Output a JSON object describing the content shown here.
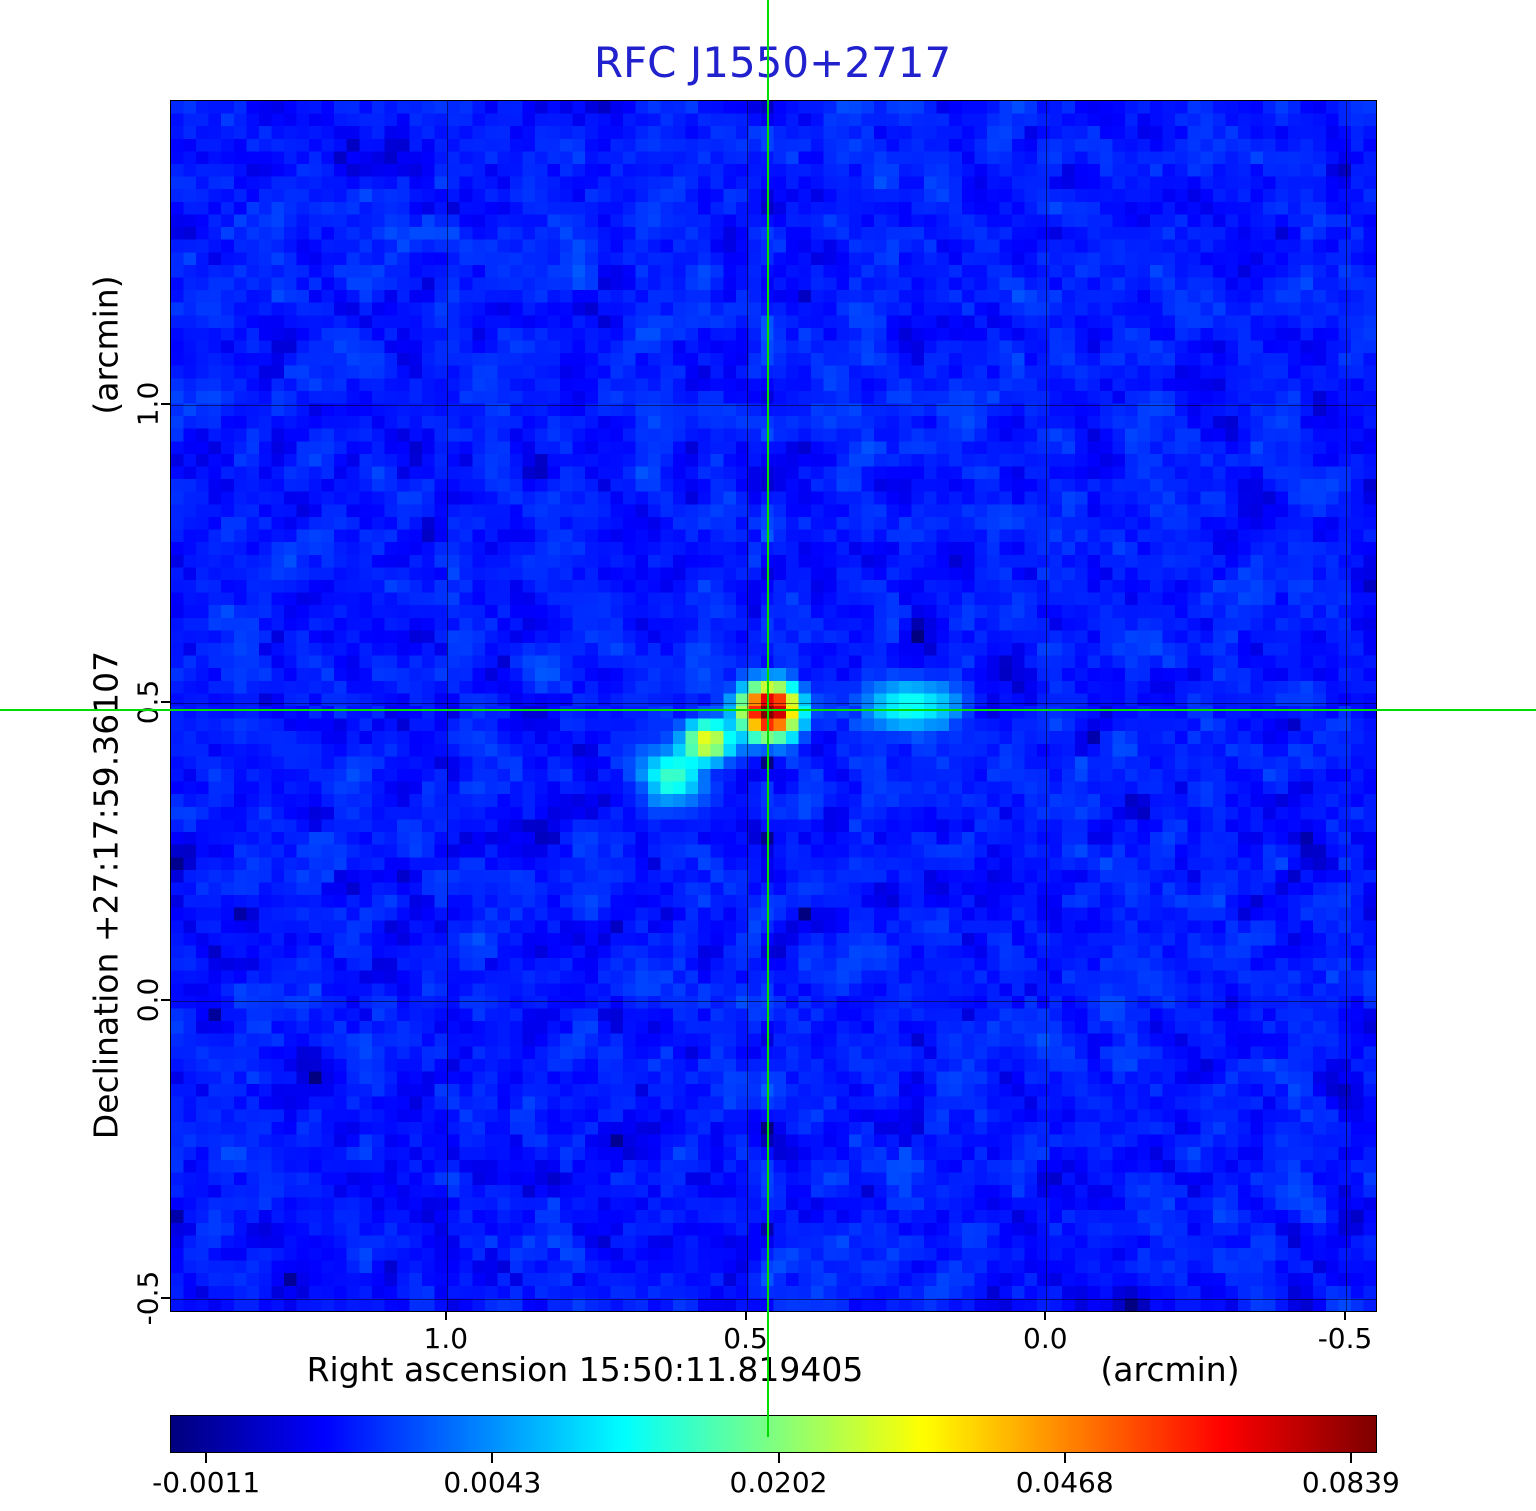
{
  "chart_data": {
    "type": "heatmap",
    "title": "RFC J1550+2717",
    "title_color": "#2121cd",
    "xlabel": "Right ascension  15:50:11.819405",
    "xunit": "(arcmin)",
    "ylabel": "Declination  +27:17:59.36107",
    "yunit": "(arcmin)",
    "x_range": [
      1.46,
      -0.55
    ],
    "y_range": [
      -0.52,
      1.51
    ],
    "x_ticks": [
      1.0,
      0.5,
      0.0,
      -0.5
    ],
    "x_tick_labels": [
      "1.0",
      "0.5",
      "0.0",
      "-0.5"
    ],
    "y_ticks": [
      1.0,
      0.5,
      0.0,
      -0.5
    ],
    "y_tick_labels": [
      "1.0",
      "0.5",
      "0.0",
      "-0.5"
    ],
    "grid": true,
    "colormap": "jet",
    "stretch": "sqrt",
    "vmin": -0.0011,
    "vmax": 0.0839,
    "colorbar_ticks": [
      -0.0011,
      0.0043,
      0.0202,
      0.0468,
      0.0839
    ],
    "colorbar_tick_labels": [
      "-0.0011",
      "0.0043",
      "0.0202",
      "0.0468",
      "0.0839"
    ],
    "crosshair": {
      "x": 0.462,
      "y": 0.487,
      "color": "#00dd00"
    },
    "noise": {
      "background": 0.0008,
      "sigma": 0.00065
    },
    "sources": [
      {
        "x": 0.462,
        "y": 0.487,
        "peak": 0.085,
        "sigma_x": 0.028,
        "sigma_y": 0.026
      },
      {
        "x": 0.565,
        "y": 0.435,
        "peak": 0.03,
        "sigma_x": 0.024,
        "sigma_y": 0.021
      },
      {
        "x": 0.625,
        "y": 0.375,
        "peak": 0.015,
        "sigma_x": 0.032,
        "sigma_y": 0.026
      },
      {
        "x": 0.225,
        "y": 0.495,
        "peak": 0.012,
        "sigma_x": 0.048,
        "sigma_y": 0.026
      }
    ],
    "artifacts": {
      "stripe_amp": 0.0012,
      "stripe_width": 0.013,
      "stripe_freq": 40,
      "streak_amp": 0.001,
      "streak_x0": 1.01,
      "streak_y0": 0.243,
      "streak_slope": -0.34,
      "streak_width": 0.013
    }
  }
}
